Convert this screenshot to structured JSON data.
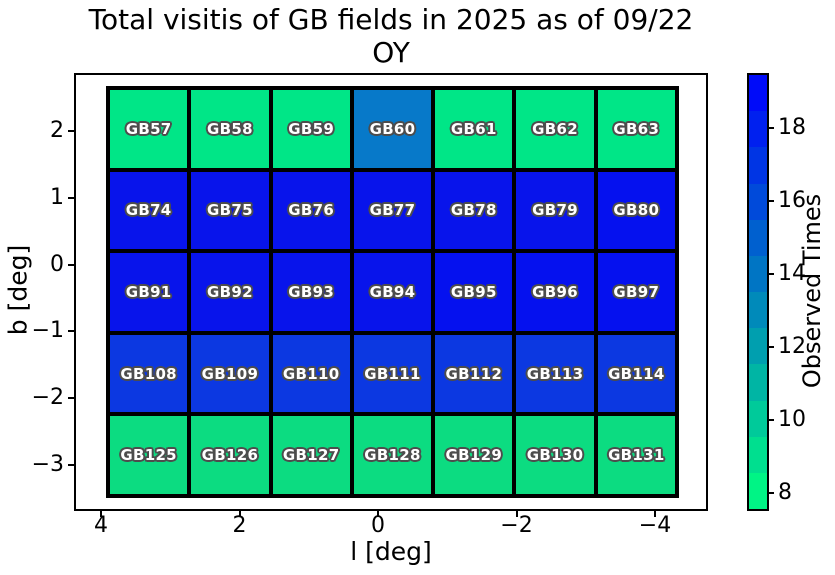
{
  "title": {
    "line1": "Total visitis of GB fields in 2025 as of 09/22",
    "line2": "OY"
  },
  "axes": {
    "xlabel": "l [deg]",
    "ylabel": "b [deg]",
    "xticks": [
      {
        "v": 4,
        "label": "4"
      },
      {
        "v": 2,
        "label": "2"
      },
      {
        "v": 0,
        "label": "0"
      },
      {
        "v": -2,
        "label": "−2"
      },
      {
        "v": -4,
        "label": "−4"
      }
    ],
    "yticks": [
      {
        "v": 2,
        "label": "2"
      },
      {
        "v": 1,
        "label": "1"
      },
      {
        "v": 0,
        "label": "0"
      },
      {
        "v": -1,
        "label": "−1"
      },
      {
        "v": -2,
        "label": "−2"
      },
      {
        "v": -3,
        "label": "−3"
      }
    ]
  },
  "colorbar": {
    "label": "Observed Times",
    "vmin": 7.5,
    "vmax": 19.5,
    "ticks": [
      {
        "v": 18,
        "label": "18"
      },
      {
        "v": 16,
        "label": "16"
      },
      {
        "v": 14,
        "label": "14"
      },
      {
        "v": 12,
        "label": "12"
      },
      {
        "v": 10,
        "label": "10"
      },
      {
        "v": 8,
        "label": "8"
      }
    ],
    "segments_bottom_to_top": [
      "#00F485",
      "#00DF8F",
      "#00CA9A",
      "#00B5A4",
      "#009FAF",
      "#008ABA",
      "#0075C4",
      "#0060CF",
      "#004ADA",
      "#0035E4",
      "#0020EF",
      "#000BF9"
    ]
  },
  "chart_data": {
    "type": "heatmap",
    "title": "Total visitis of GB fields in 2025 as of 09/22 OY",
    "xlabel": "l [deg]",
    "ylabel": "b [deg]",
    "colorbar_label": "Observed Times",
    "x_axis": {
      "tick_values": [
        4,
        2,
        0,
        -2,
        -4
      ],
      "inverted": true,
      "approx_range": [
        4.4,
        -4.8
      ]
    },
    "y_axis": {
      "tick_values": [
        2,
        1,
        0,
        -1,
        -2,
        -3
      ],
      "approx_range": [
        -3.7,
        2.9
      ]
    },
    "color_scale": {
      "style": "discrete green-to-blue (winter reversed), 12 steps",
      "vmin": 7.5,
      "vmax": 19.5,
      "tick_values": [
        8,
        10,
        12,
        14,
        16,
        18
      ]
    },
    "rows": [
      {
        "b_center": 2.1,
        "cells": [
          {
            "label": "GB57",
            "value": 9,
            "color": "#00E687"
          },
          {
            "label": "GB58",
            "value": 9,
            "color": "#00E687"
          },
          {
            "label": "GB59",
            "value": 9,
            "color": "#00E687"
          },
          {
            "label": "GB60",
            "value": 14,
            "color": "#0779C9"
          },
          {
            "label": "GB61",
            "value": 9,
            "color": "#00E687"
          },
          {
            "label": "GB62",
            "value": 9,
            "color": "#00E687"
          },
          {
            "label": "GB63",
            "value": 9,
            "color": "#00E687"
          }
        ]
      },
      {
        "b_center": 0.8,
        "cells": [
          {
            "label": "GB74",
            "value": 19,
            "color": "#0814EB"
          },
          {
            "label": "GB75",
            "value": 19,
            "color": "#0814EB"
          },
          {
            "label": "GB76",
            "value": 19,
            "color": "#0814EB"
          },
          {
            "label": "GB77",
            "value": 19,
            "color": "#0814EB"
          },
          {
            "label": "GB78",
            "value": 19,
            "color": "#0814EB"
          },
          {
            "label": "GB79",
            "value": 19,
            "color": "#0814EB"
          },
          {
            "label": "GB80",
            "value": 19,
            "color": "#0511EF"
          }
        ]
      },
      {
        "b_center": -0.4,
        "cells": [
          {
            "label": "GB91",
            "value": 19,
            "color": "#0814EB"
          },
          {
            "label": "GB92",
            "value": 19,
            "color": "#0814EB"
          },
          {
            "label": "GB93",
            "value": 19,
            "color": "#0814EB"
          },
          {
            "label": "GB94",
            "value": 19,
            "color": "#0814EB"
          },
          {
            "label": "GB95",
            "value": 19,
            "color": "#0511EF"
          },
          {
            "label": "GB96",
            "value": 19,
            "color": "#0511EF"
          },
          {
            "label": "GB97",
            "value": 19,
            "color": "#0511EF"
          }
        ]
      },
      {
        "b_center": -1.6,
        "cells": [
          {
            "label": "GB108",
            "value": 17,
            "color": "#0C38E1"
          },
          {
            "label": "GB109",
            "value": 17,
            "color": "#0C38E1"
          },
          {
            "label": "GB110",
            "value": 17,
            "color": "#0C38E1"
          },
          {
            "label": "GB111",
            "value": 17,
            "color": "#0C38E1"
          },
          {
            "label": "GB112",
            "value": 17,
            "color": "#0C38E1"
          },
          {
            "label": "GB113",
            "value": 17,
            "color": "#0C38E1"
          },
          {
            "label": "GB114",
            "value": 17,
            "color": "#0C38E1"
          }
        ]
      },
      {
        "b_center": -2.9,
        "cells": [
          {
            "label": "GB125",
            "value": 9,
            "color": "#0CDC81"
          },
          {
            "label": "GB126",
            "value": 9,
            "color": "#0CDC81"
          },
          {
            "label": "GB127",
            "value": 9,
            "color": "#0CDC81"
          },
          {
            "label": "GB128",
            "value": 9,
            "color": "#0CDC81"
          },
          {
            "label": "GB129",
            "value": 9,
            "color": "#0CDC81"
          },
          {
            "label": "GB130",
            "value": 9,
            "color": "#0CDC81"
          },
          {
            "label": "GB131",
            "value": 9,
            "color": "#0CDC81"
          }
        ]
      }
    ]
  }
}
